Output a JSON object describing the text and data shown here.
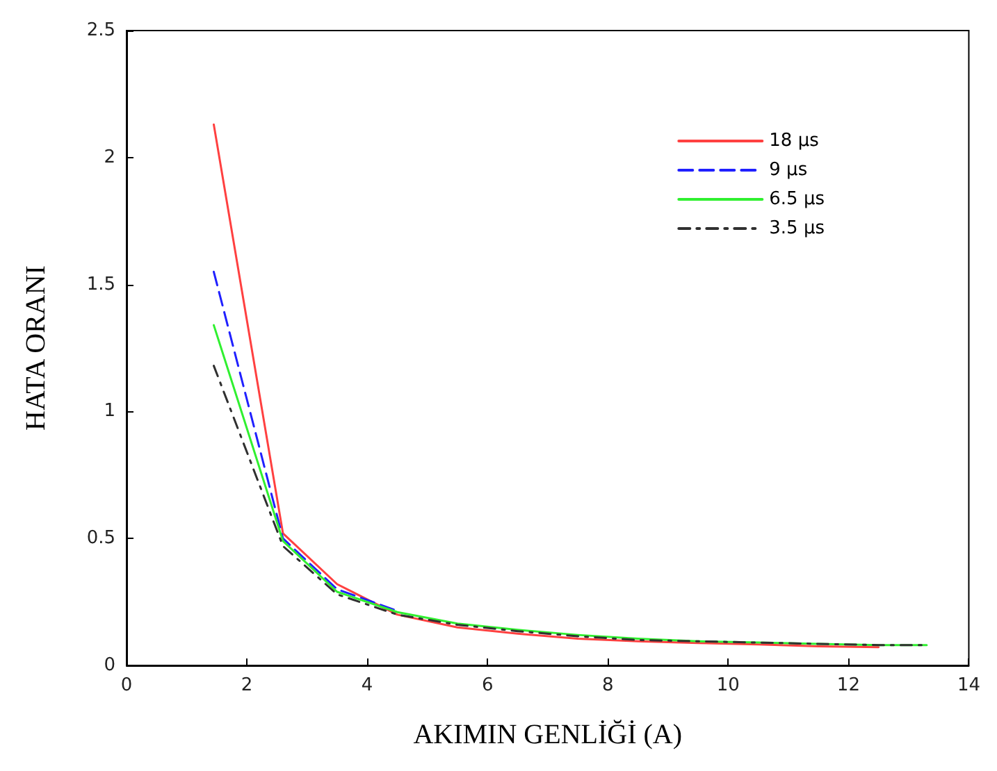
{
  "chart_data": {
    "type": "line",
    "xlabel": "AKIMIN GENLİĞİ (A)",
    "ylabel": "HATA ORANI",
    "x": [
      1.45,
      2.6,
      3.5,
      4.5,
      5.5,
      6.5,
      7.5,
      8.5,
      9.5,
      10.5,
      11.5,
      12.5,
      13.3
    ],
    "series": [
      {
        "name": "18 µs",
        "color": "#ff4040",
        "line_style": "solid",
        "values": [
          2.13,
          0.52,
          0.32,
          0.2,
          0.15,
          0.125,
          0.105,
          0.095,
          0.088,
          0.083,
          0.075,
          0.072,
          null
        ]
      },
      {
        "name": "9 µs",
        "color": "#2020ff",
        "line_style": "dashed",
        "values": [
          1.55,
          0.5,
          0.3,
          0.215,
          null,
          null,
          null,
          null,
          null,
          null,
          null,
          null,
          null
        ]
      },
      {
        "name": "6.5 µs",
        "color": "#30f030",
        "line_style": "solid",
        "values": [
          1.34,
          0.49,
          0.29,
          0.21,
          0.165,
          0.14,
          0.12,
          0.105,
          0.095,
          0.09,
          0.085,
          0.08,
          0.08
        ]
      },
      {
        "name": "3.5 µs",
        "color": "#303030",
        "line_style": "dotted",
        "values": [
          1.18,
          0.47,
          0.28,
          0.2,
          0.16,
          0.135,
          0.115,
          0.1,
          0.095,
          0.09,
          0.085,
          0.08,
          0.08
        ]
      }
    ],
    "xlim": [
      0,
      14
    ],
    "xticks": [
      0,
      2,
      4,
      6,
      8,
      10,
      12,
      14
    ],
    "ylim": [
      0,
      2.5
    ],
    "yticks": [
      0,
      0.5,
      1,
      1.5,
      2,
      2.5
    ],
    "grid": false,
    "legend": "top right",
    "marker": "none"
  }
}
